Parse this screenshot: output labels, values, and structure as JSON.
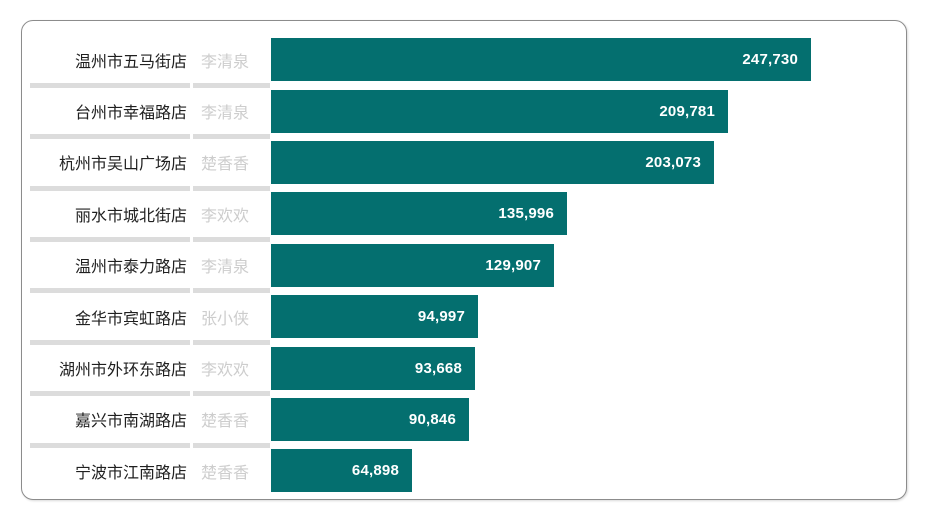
{
  "chart_data": {
    "type": "bar",
    "orientation": "horizontal",
    "title": "",
    "legend": "none",
    "gridlines": "off",
    "axis_labels": "off",
    "data_labels": "inside-end",
    "value_format": "#,##0",
    "category_fields": [
      "store",
      "person"
    ],
    "rows": [
      {
        "store": "温州市五马街店",
        "person": "李清泉",
        "value": 247730,
        "value_label": "247,730"
      },
      {
        "store": "台州市幸福路店",
        "person": "李清泉",
        "value": 209781,
        "value_label": "209,781"
      },
      {
        "store": "杭州市吴山广场店",
        "person": "楚香香",
        "value": 203073,
        "value_label": "203,073"
      },
      {
        "store": "丽水市城北街店",
        "person": "李欢欢",
        "value": 135996,
        "value_label": "135,996"
      },
      {
        "store": "温州市泰力路店",
        "person": "李清泉",
        "value": 129907,
        "value_label": "129,907"
      },
      {
        "store": "金华市宾虹路店",
        "person": "张小侠",
        "value": 94997,
        "value_label": "94,997"
      },
      {
        "store": "湖州市外环东路店",
        "person": "李欢欢",
        "value": 93668,
        "value_label": "93,668"
      },
      {
        "store": "嘉兴市南湖路店",
        "person": "楚香香",
        "value": 90846,
        "value_label": "90,846"
      },
      {
        "store": "宁波市江南路店",
        "person": "楚香香",
        "value": 64898,
        "value_label": "64,898"
      }
    ],
    "value_range": [
      0,
      247730
    ],
    "colors": {
      "bar": "#046F6F",
      "value_label": "#ffffff",
      "store_label": "#202020",
      "person_label": "#cdcdcd",
      "separator": "#dcdcdc",
      "border": "#8c8c8c",
      "background": "#ffffff"
    }
  }
}
